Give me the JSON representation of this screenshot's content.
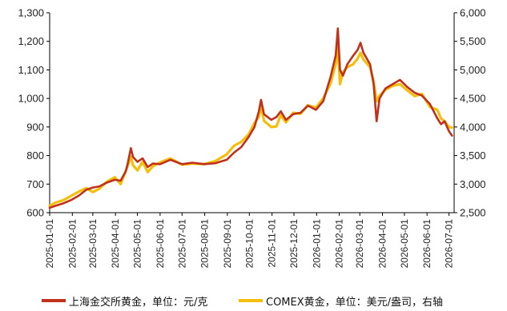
{
  "chart_data": {
    "type": "line",
    "title": "",
    "xlabel": "",
    "ylabel": "",
    "y2label": "",
    "x_ticks": [
      "2025-01-01",
      "2025-02-01",
      "2025-03-01",
      "2025-04-01",
      "2025-05-01",
      "2025-06-01",
      "2025-07-01",
      "2025-08-01",
      "2025-09-01",
      "2025-10-01",
      "2025-11-01",
      "2025-12-01",
      "2026-01-01",
      "2026-02-01",
      "2026-03-01",
      "2026-04-01",
      "2026-05-01",
      "2026-06-01",
      "2026-07-01"
    ],
    "xlim": [
      "2025-01-01",
      "2026-07-08"
    ],
    "ylim": [
      600,
      1300
    ],
    "y_ticks": [
      600,
      700,
      800,
      900,
      1000,
      1100,
      1200,
      1300
    ],
    "y_tick_labels": [
      "600",
      "700",
      "800",
      "900",
      "1,000",
      "1,100",
      "1,200",
      "1,300"
    ],
    "y2lim": [
      2500,
      6000
    ],
    "y2_ticks": [
      2500,
      3000,
      3500,
      4000,
      4500,
      5000,
      5500,
      6000
    ],
    "y2_tick_labels": [
      "2,500",
      "3,000",
      "3,500",
      "4,000",
      "4,500",
      "5,000",
      "5,500",
      "6,000"
    ],
    "grid": false,
    "legend": "bottom",
    "series": [
      {
        "name": "上海金交所黄金，单位：元/克",
        "axis": "left",
        "color": "#C0311B",
        "points": [
          [
            "2025-01-01",
            617
          ],
          [
            "2025-01-10",
            625
          ],
          [
            "2025-01-20",
            633
          ],
          [
            "2025-01-31",
            645
          ],
          [
            "2025-02-10",
            660
          ],
          [
            "2025-02-20",
            680
          ],
          [
            "2025-03-01",
            688
          ],
          [
            "2025-03-10",
            692
          ],
          [
            "2025-03-20",
            705
          ],
          [
            "2025-03-31",
            715
          ],
          [
            "2025-04-08",
            712
          ],
          [
            "2025-04-15",
            745
          ],
          [
            "2025-04-18",
            775
          ],
          [
            "2025-04-22",
            826
          ],
          [
            "2025-04-25",
            795
          ],
          [
            "2025-05-01",
            778
          ],
          [
            "2025-05-08",
            790
          ],
          [
            "2025-05-15",
            760
          ],
          [
            "2025-05-22",
            772
          ],
          [
            "2025-06-01",
            770
          ],
          [
            "2025-06-15",
            785
          ],
          [
            "2025-07-01",
            770
          ],
          [
            "2025-07-15",
            775
          ],
          [
            "2025-07-31",
            770
          ],
          [
            "2025-08-15",
            773
          ],
          [
            "2025-08-31",
            785
          ],
          [
            "2025-09-10",
            810
          ],
          [
            "2025-09-20",
            830
          ],
          [
            "2025-09-30",
            865
          ],
          [
            "2025-10-08",
            900
          ],
          [
            "2025-10-14",
            955
          ],
          [
            "2025-10-17",
            995
          ],
          [
            "2025-10-21",
            945
          ],
          [
            "2025-10-31",
            925
          ],
          [
            "2025-11-07",
            935
          ],
          [
            "2025-11-13",
            955
          ],
          [
            "2025-11-20",
            925
          ],
          [
            "2025-11-30",
            945
          ],
          [
            "2025-12-10",
            950
          ],
          [
            "2025-12-20",
            975
          ],
          [
            "2025-12-31",
            960
          ],
          [
            "2026-01-10",
            990
          ],
          [
            "2026-01-20",
            1075
          ],
          [
            "2026-01-27",
            1150
          ],
          [
            "2026-01-30",
            1245
          ],
          [
            "2026-02-02",
            1100
          ],
          [
            "2026-02-06",
            1080
          ],
          [
            "2026-02-12",
            1120
          ],
          [
            "2026-02-20",
            1150
          ],
          [
            "2026-02-26",
            1170
          ],
          [
            "2026-03-02",
            1195
          ],
          [
            "2026-03-06",
            1160
          ],
          [
            "2026-03-15",
            1120
          ],
          [
            "2026-03-20",
            1050
          ],
          [
            "2026-03-24",
            920
          ],
          [
            "2026-03-28",
            1000
          ],
          [
            "2026-04-05",
            1035
          ],
          [
            "2026-04-15",
            1050
          ],
          [
            "2026-04-25",
            1065
          ],
          [
            "2026-05-05",
            1040
          ],
          [
            "2026-05-15",
            1020
          ],
          [
            "2026-05-25",
            1010
          ],
          [
            "2026-06-05",
            980
          ],
          [
            "2026-06-15",
            930
          ],
          [
            "2026-06-20",
            910
          ],
          [
            "2026-06-25",
            920
          ],
          [
            "2026-07-01",
            885
          ],
          [
            "2026-07-05",
            870
          ]
        ]
      },
      {
        "name": "COMEX黄金，单位：美元/盎司，右轴",
        "axis": "right",
        "color": "#F5BE0B",
        "points": [
          [
            "2025-01-01",
            2620
          ],
          [
            "2025-01-10",
            2680
          ],
          [
            "2025-01-20",
            2720
          ],
          [
            "2025-01-31",
            2800
          ],
          [
            "2025-02-10",
            2870
          ],
          [
            "2025-02-20",
            2930
          ],
          [
            "2025-03-01",
            2860
          ],
          [
            "2025-03-10",
            2920
          ],
          [
            "2025-03-20",
            3040
          ],
          [
            "2025-03-31",
            3120
          ],
          [
            "2025-04-08",
            3000
          ],
          [
            "2025-04-15",
            3230
          ],
          [
            "2025-04-18",
            3330
          ],
          [
            "2025-04-22",
            3480
          ],
          [
            "2025-04-25",
            3330
          ],
          [
            "2025-05-01",
            3240
          ],
          [
            "2025-05-08",
            3390
          ],
          [
            "2025-05-15",
            3210
          ],
          [
            "2025-05-22",
            3310
          ],
          [
            "2025-06-01",
            3380
          ],
          [
            "2025-06-15",
            3450
          ],
          [
            "2025-07-01",
            3340
          ],
          [
            "2025-07-15",
            3360
          ],
          [
            "2025-07-31",
            3350
          ],
          [
            "2025-08-15",
            3400
          ],
          [
            "2025-08-31",
            3520
          ],
          [
            "2025-09-10",
            3670
          ],
          [
            "2025-09-20",
            3740
          ],
          [
            "2025-09-30",
            3870
          ],
          [
            "2025-10-08",
            4070
          ],
          [
            "2025-10-14",
            4180
          ],
          [
            "2025-10-17",
            4370
          ],
          [
            "2025-10-21",
            4110
          ],
          [
            "2025-10-31",
            4000
          ],
          [
            "2025-11-07",
            4010
          ],
          [
            "2025-11-13",
            4210
          ],
          [
            "2025-11-20",
            4080
          ],
          [
            "2025-11-30",
            4250
          ],
          [
            "2025-12-10",
            4230
          ],
          [
            "2025-12-20",
            4380
          ],
          [
            "2025-12-31",
            4340
          ],
          [
            "2026-01-10",
            4500
          ],
          [
            "2026-01-20",
            4760
          ],
          [
            "2026-01-27",
            5100
          ],
          [
            "2026-01-30",
            5400
          ],
          [
            "2026-02-02",
            4750
          ],
          [
            "2026-02-06",
            4960
          ],
          [
            "2026-02-12",
            5050
          ],
          [
            "2026-02-20",
            5100
          ],
          [
            "2026-02-26",
            5200
          ],
          [
            "2026-03-02",
            5300
          ],
          [
            "2026-03-06",
            5180
          ],
          [
            "2026-03-15",
            5050
          ],
          [
            "2026-03-20",
            4800
          ],
          [
            "2026-03-24",
            4450
          ],
          [
            "2026-03-28",
            4550
          ],
          [
            "2026-04-05",
            4650
          ],
          [
            "2026-04-15",
            4720
          ],
          [
            "2026-04-25",
            4750
          ],
          [
            "2026-05-05",
            4640
          ],
          [
            "2026-05-15",
            4540
          ],
          [
            "2026-05-25",
            4580
          ],
          [
            "2026-06-05",
            4350
          ],
          [
            "2026-06-15",
            4300
          ],
          [
            "2026-06-20",
            4150
          ],
          [
            "2026-06-25",
            4100
          ],
          [
            "2026-07-01",
            4000
          ],
          [
            "2026-07-05",
            3990
          ]
        ]
      }
    ]
  }
}
